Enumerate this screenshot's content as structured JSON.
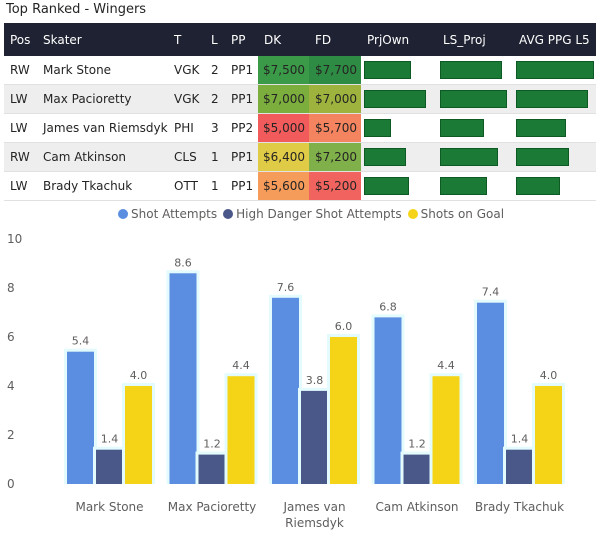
{
  "title": "Top Ranked - Wingers",
  "table": {
    "columns": [
      "Pos",
      "Skater",
      "T",
      "L",
      "PP",
      "DK",
      "FD",
      "PrjOwn",
      "LS_Proj",
      "AVG PPG L5"
    ],
    "rows": [
      {
        "pos": "RW",
        "skater": "Mark Stone",
        "team": "VGK",
        "line": "2",
        "pp": "PP1",
        "dk": "$7,500",
        "fd": "$7,700",
        "dk_color": "#3a9a48",
        "fd_color": "#2e8b43",
        "prjown": 0.66,
        "ls_proj": 0.88,
        "avg_ppg": 1.0
      },
      {
        "pos": "LW",
        "skater": "Max Pacioretty",
        "team": "VGK",
        "line": "2",
        "pp": "PP1",
        "dk": "$7,000",
        "fd": "$7,000",
        "dk_color": "#7cae3e",
        "fd_color": "#9db33d",
        "prjown": 0.88,
        "ls_proj": 0.95,
        "avg_ppg": 0.92
      },
      {
        "pos": "LW",
        "skater": "James van Riemsdyk",
        "team": "PHI",
        "line": "3",
        "pp": "PP2",
        "dk": "$5,000",
        "fd": "$5,700",
        "dk_color": "#f15b5b",
        "fd_color": "#f4845f",
        "prjown": 0.38,
        "ls_proj": 0.62,
        "avg_ppg": 0.64
      },
      {
        "pos": "RW",
        "skater": "Cam Atkinson",
        "team": "CLS",
        "line": "1",
        "pp": "PP1",
        "dk": "$6,400",
        "fd": "$7,200",
        "dk_color": "#e0cb47",
        "fd_color": "#7fb04a",
        "prjown": 0.59,
        "ls_proj": 0.82,
        "avg_ppg": 0.68
      },
      {
        "pos": "LW",
        "skater": "Brady Tkachuk",
        "team": "OTT",
        "line": "1",
        "pp": "PP1",
        "dk": "$5,600",
        "fd": "$5,200",
        "dk_color": "#f59c5b",
        "fd_color": "#f1635e",
        "prjown": 0.64,
        "ls_proj": 0.66,
        "avg_ppg": 0.56
      }
    ]
  },
  "chart_data": {
    "type": "bar",
    "categories": [
      "Mark Stone",
      "Max Pacioretty",
      "James van Riemsdyk",
      "Cam Atkinson",
      "Brady Tkachuk"
    ],
    "category_lines": [
      [
        "Mark Stone"
      ],
      [
        "Max Pacioretty"
      ],
      [
        "James van",
        "Riemsdyk"
      ],
      [
        "Cam Atkinson"
      ],
      [
        "Brady Tkachuk"
      ]
    ],
    "series": [
      {
        "name": "Shot Attempts",
        "color": "#5b8de0",
        "values": [
          5.4,
          8.6,
          7.6,
          6.8,
          7.4
        ]
      },
      {
        "name": "High Danger Shot Attempts",
        "color": "#4a5889",
        "values": [
          1.4,
          1.2,
          3.8,
          1.2,
          1.4
        ]
      },
      {
        "name": "Shots on Goal",
        "color": "#f5d418",
        "values": [
          4.0,
          4.4,
          6.0,
          4.4,
          4.0
        ]
      }
    ],
    "ylim": [
      0,
      10
    ],
    "yticks": [
      0,
      2,
      4,
      6,
      8,
      10
    ],
    "legend": "top-center"
  }
}
